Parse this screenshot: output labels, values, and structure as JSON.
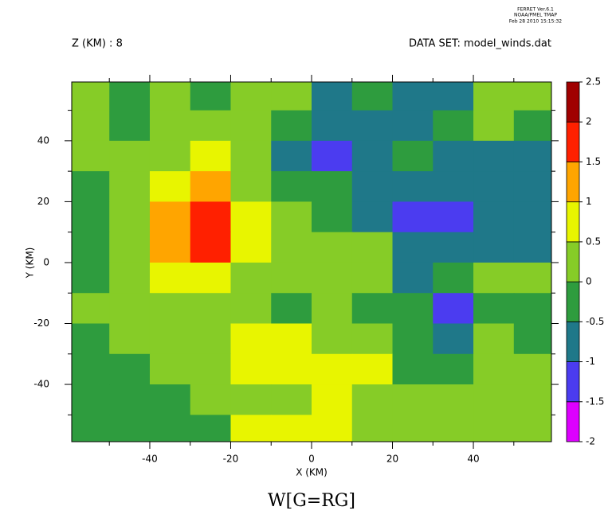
{
  "header": {
    "program": "FERRET Ver.6.1",
    "org": "NOAA/PMEL TMAP",
    "date": "Feb 28 2010 15:15:32"
  },
  "chart_data": {
    "type": "contour",
    "title": "W[G=RG]",
    "subtitle_left": "Z (KM) : 8",
    "subtitle_right": "DATA SET: model_winds.dat",
    "x_label": "X (KM)",
    "y_label": "Y (KM)",
    "xlim": [
      -59.3,
      59.3
    ],
    "ylim": [
      -58.8,
      59.3
    ],
    "xticks": [
      -40,
      -20,
      0,
      20,
      40
    ],
    "yticks": [
      -40,
      -20,
      0,
      20,
      40
    ],
    "xticks_minor": [
      -50,
      -30,
      -10,
      10,
      30,
      50
    ],
    "yticks_minor": [
      -50,
      -30,
      -10,
      10,
      30,
      50
    ],
    "levels": [
      -2,
      -1.5,
      -1,
      -0.5,
      0,
      0.5,
      1,
      1.5,
      2,
      2.5
    ],
    "colors": [
      "#dd00ff",
      "#4b3cf0",
      "#1f7889",
      "#2e9c3e",
      "#86cc27",
      "#e8f500",
      "#ffa500",
      "#ff2000",
      "#a00000"
    ],
    "x": [
      -55,
      -45,
      -35,
      -25,
      -15,
      -5,
      5,
      15,
      25,
      35,
      45,
      55
    ],
    "y": [
      55,
      45,
      35,
      25,
      15,
      5,
      -5,
      -15,
      -25,
      -35,
      -45,
      -55
    ],
    "z": [
      [
        0.25,
        -0.25,
        0.25,
        -0.25,
        0.25,
        0.25,
        -0.75,
        -0.25,
        -0.75,
        -0.75,
        0.25,
        0.25
      ],
      [
        0.25,
        -0.25,
        0.25,
        0.25,
        0.25,
        -0.25,
        -0.75,
        -0.75,
        -0.75,
        -0.25,
        0.25,
        -0.25
      ],
      [
        0.25,
        0.25,
        0.25,
        0.75,
        0.25,
        -0.75,
        -1.25,
        -0.75,
        -0.25,
        -0.75,
        -0.75,
        -0.75
      ],
      [
        -0.25,
        0.25,
        0.75,
        1.25,
        0.25,
        -0.25,
        -0.25,
        -0.75,
        -0.75,
        -0.75,
        -0.75,
        -0.75
      ],
      [
        -0.25,
        0.25,
        1.25,
        1.75,
        0.75,
        0.25,
        -0.25,
        -0.75,
        -1.25,
        -1.25,
        -0.75,
        -0.75
      ],
      [
        -0.25,
        0.25,
        1.25,
        1.75,
        0.75,
        0.25,
        0.25,
        0.25,
        -0.75,
        -0.75,
        -0.75,
        -0.75
      ],
      [
        -0.25,
        0.25,
        0.75,
        0.75,
        0.25,
        0.25,
        0.25,
        0.25,
        -0.75,
        -0.25,
        0.25,
        0.25
      ],
      [
        0.25,
        0.25,
        0.25,
        0.25,
        0.25,
        -0.25,
        0.25,
        -0.25,
        -0.25,
        -1.25,
        -0.25,
        -0.25
      ],
      [
        -0.25,
        0.25,
        0.25,
        0.25,
        0.75,
        0.75,
        0.25,
        0.25,
        -0.25,
        -0.75,
        0.25,
        -0.25
      ],
      [
        -0.25,
        -0.25,
        0.25,
        0.25,
        0.75,
        0.75,
        0.75,
        0.75,
        -0.25,
        -0.25,
        0.25,
        0.25
      ],
      [
        -0.25,
        -0.25,
        -0.25,
        0.25,
        0.25,
        0.25,
        0.75,
        0.25,
        0.25,
        0.25,
        0.25,
        0.25
      ],
      [
        -0.25,
        -0.25,
        -0.25,
        -0.25,
        0.75,
        0.75,
        0.75,
        0.25,
        0.25,
        0.25,
        0.25,
        0.25
      ]
    ]
  }
}
